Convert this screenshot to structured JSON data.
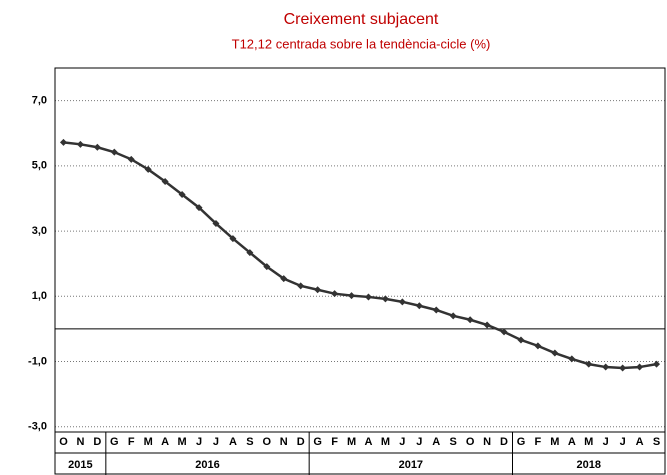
{
  "chart_data": {
    "type": "line",
    "subtitle": "Creixement subjacent",
    "caption": "T12,12 centrada sobre la tendència-cicle (%)",
    "categories": [
      "O",
      "N",
      "D",
      "G",
      "F",
      "M",
      "A",
      "M",
      "J",
      "J",
      "A",
      "S",
      "O",
      "N",
      "D",
      "G",
      "F",
      "M",
      "A",
      "M",
      "J",
      "J",
      "A",
      "S",
      "O",
      "N",
      "D",
      "G",
      "F",
      "M",
      "A",
      "M",
      "J",
      "J",
      "A",
      "S"
    ],
    "years": [
      "2015",
      "2016",
      "2017",
      "2018"
    ],
    "series": [
      {
        "name": "T12,12",
        "color": "#333333",
        "values": [
          5.72,
          5.66,
          5.57,
          5.42,
          5.2,
          4.89,
          4.52,
          4.12,
          3.72,
          3.23,
          2.77,
          2.34,
          1.91,
          1.54,
          1.32,
          1.2,
          1.08,
          1.02,
          0.98,
          0.92,
          0.83,
          0.71,
          0.58,
          0.4,
          0.28,
          0.12,
          -0.09,
          -0.34,
          -0.52,
          -0.74,
          -0.92,
          -1.08,
          -1.17,
          -1.2,
          -1.17,
          -1.08
        ]
      }
    ],
    "ylim": [
      -3.1,
      8
    ],
    "yticks": [
      {
        "value": -3,
        "label": "-3,0"
      },
      {
        "value": -1,
        "label": "-1,0"
      },
      {
        "value": 1,
        "label": "1,0"
      },
      {
        "value": 3,
        "label": "3,0"
      },
      {
        "value": 5,
        "label": "5,0"
      },
      {
        "value": 7,
        "label": "7,0"
      }
    ],
    "grid": true
  }
}
